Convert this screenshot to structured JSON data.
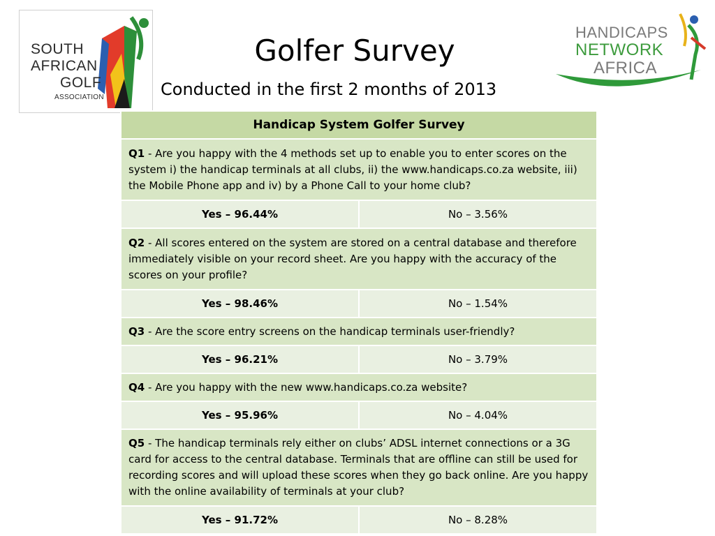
{
  "logos": {
    "left": {
      "lines": [
        "SOUTH",
        "AFRICAN",
        "GOLF",
        "ASSOCIATION"
      ],
      "icon": "saga-golfer-flag-logo"
    },
    "right": {
      "lines": [
        "HANDICAPS",
        "NETWORK",
        "AFRICA"
      ],
      "icon": "hna-golfer-swoosh-logo"
    }
  },
  "colors": {
    "header": "#c5d9a4",
    "question": "#d8e6c5",
    "answer": "#e9f0e1",
    "network_green": "#3d9b3d"
  },
  "title": "Golfer Survey",
  "subtitle": "Conducted in the first 2 months of 2013",
  "table": {
    "header": "Handicap System Golfer Survey",
    "questions": [
      {
        "num": "Q1",
        "text": " - Are you happy with the 4 methods set up to enable you to enter scores on the system i) the handicap terminals at all clubs, ii) the www.handicaps.co.za website, iii) the Mobile Phone app and iv) by a Phone Call to your home club?",
        "yes": "Yes – 96.44%",
        "no": "No – 3.56%"
      },
      {
        "num": "Q2",
        "text": " - All scores entered on the system are stored on a central database and therefore immediately visible on your record sheet. Are you happy with the accuracy of the scores on your profile?",
        "yes": "Yes – 98.46%",
        "no": "No – 1.54%"
      },
      {
        "num": "Q3",
        "text": " - Are the score entry screens on the handicap terminals user-friendly?",
        "yes": "Yes – 96.21%",
        "no": "No – 3.79%"
      },
      {
        "num": "Q4",
        "text": " - Are you happy with the new www.handicaps.co.za website?",
        "yes": "Yes – 95.96%",
        "no": "No – 4.04%"
      },
      {
        "num": "Q5",
        "text": " - The handicap terminals rely either on clubs’ ADSL internet connections or a 3G card for access to the central database. Terminals that are offline can still be used for recording scores and will upload these scores when they go back online. Are you happy with the online availability of terminals at your club?",
        "yes": "Yes – 91.72%",
        "no": "No – 8.28%"
      }
    ]
  }
}
